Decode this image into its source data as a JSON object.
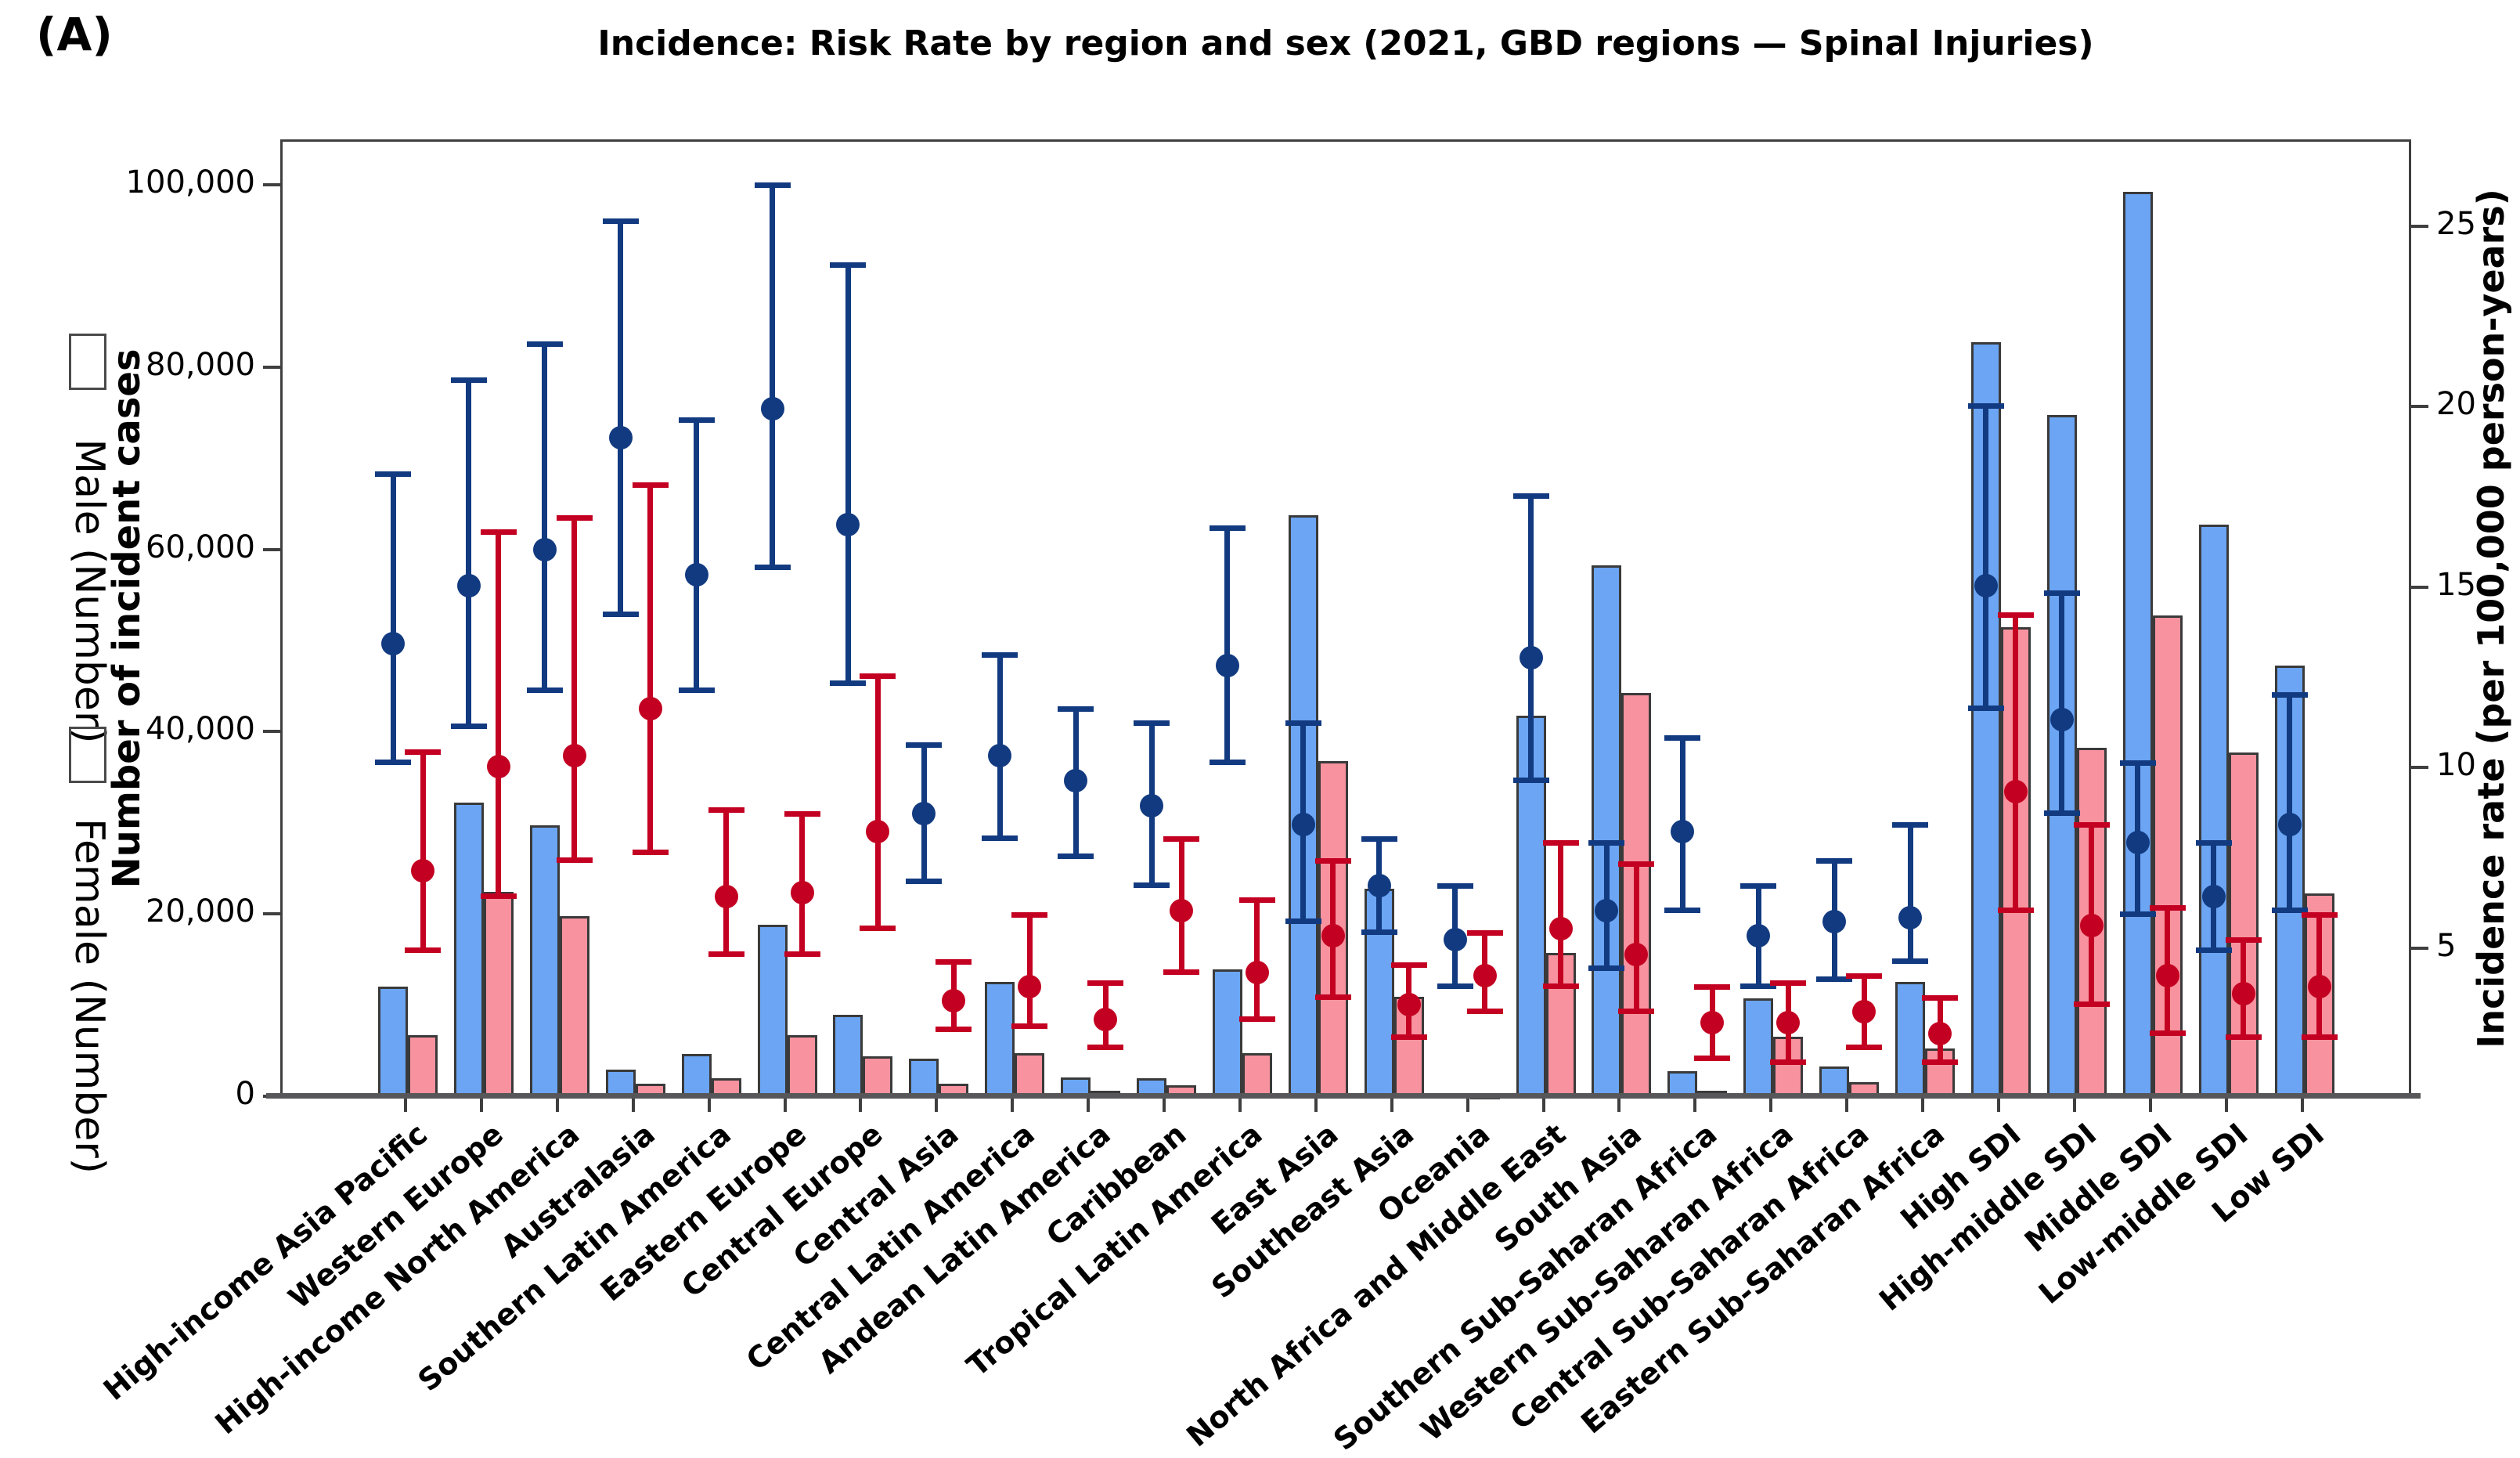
{
  "panel_label": "(A)",
  "title": "Incidence: Risk Rate by region and sex (2021, GBD regions — Spinal Injuries)",
  "legend": {
    "male": {
      "label": "Male (Number)",
      "color": "#6BA5F3"
    },
    "female": {
      "label": "Female (Number)",
      "color": "#F8929F"
    }
  },
  "colors": {
    "male_bar": "#6BA5F3",
    "female_bar": "#F8929F",
    "male_point": "#123A80",
    "female_point": "#C30021",
    "axis": "#3f3f3f",
    "bar_edge": "#3a3a3a"
  },
  "left_axis": {
    "label": "Number of incident cases",
    "tick_values": [
      0,
      20000,
      40000,
      60000,
      80000,
      100000
    ],
    "tick_labels": [
      "0",
      "20,000",
      "40,000",
      "60,000",
      "80,000",
      "100,000"
    ],
    "max": 105000
  },
  "right_axis": {
    "label": "Incidence rate (per 100,000 person-years)",
    "tick_values": [
      5,
      10,
      15,
      20,
      25
    ],
    "tick_labels": [
      "5",
      "10",
      "15",
      "20",
      "25"
    ],
    "min": 0.9,
    "max": 27.4
  },
  "chart_data": {
    "type": "bar",
    "subtype": "grouped bars (left axis) with point estimates and 95% CI whiskers (right axis)",
    "title": "Incidence: Risk Rate by region and sex (2021, GBD regions — Spinal Injuries)",
    "xlabel": "",
    "ylabel": "Number of incident cases",
    "ylabel_right": "Incidence rate (per 100,000 person-years)",
    "ylim_left": [
      0,
      105000
    ],
    "ylim_right": [
      0.9,
      27.4
    ],
    "grid": false,
    "legend_position": "left of plot, vertical",
    "categories": [
      "High-income Asia Pacific",
      "Western Europe",
      "High-income North America",
      "Australasia",
      "Southern Latin America",
      "Eastern Europe",
      "Central Europe",
      "Central Asia",
      "Central Latin America",
      "Andean Latin America",
      "Caribbean",
      "Tropical Latin America",
      "East Asia",
      "Southeast Asia",
      "Oceania",
      "North Africa and Middle East",
      "South Asia",
      "Southern Sub-Saharan Africa",
      "Western Sub-Saharan Africa",
      "Central Sub-Saharan Africa",
      "Eastern Sub-Saharan Africa",
      "High SDI",
      "High-middle SDI",
      "Middle SDI",
      "Low-middle SDI",
      "Low SDI"
    ],
    "series": [
      {
        "name": "Male (Number)",
        "kind": "bar",
        "axis": "left",
        "color": "#6BA5F3",
        "values": [
          12300,
          32500,
          30000,
          3200,
          4900,
          19100,
          9200,
          4400,
          12800,
          2300,
          2200,
          14200,
          64000,
          23000,
          600,
          42000,
          58500,
          3000,
          11000,
          3500,
          12800,
          83000,
          75000,
          99500,
          63000,
          47500
        ]
      },
      {
        "name": "Female (Number)",
        "kind": "bar",
        "axis": "left",
        "color": "#F8929F",
        "values": [
          7000,
          22700,
          20000,
          1600,
          2200,
          7000,
          4600,
          1600,
          5000,
          900,
          1500,
          5000,
          37000,
          11200,
          400,
          16000,
          44500,
          900,
          6800,
          1800,
          5500,
          51700,
          38500,
          53000,
          38000,
          22500
        ]
      },
      {
        "name": "Male incidence rate",
        "kind": "point_ci",
        "axis": "right",
        "color": "#123A80",
        "values": [
          13.5,
          15.1,
          16.1,
          19.2,
          15.4,
          20.0,
          16.8,
          8.8,
          10.4,
          9.7,
          9.0,
          12.9,
          8.5,
          6.8,
          5.3,
          13.1,
          6.1,
          8.3,
          5.4,
          5.8,
          5.9,
          15.1,
          11.4,
          8.0,
          6.5,
          8.5
        ],
        "ci_low": [
          10.2,
          11.2,
          12.2,
          14.3,
          12.2,
          15.6,
          12.4,
          6.9,
          8.1,
          7.6,
          6.8,
          10.2,
          5.8,
          5.5,
          4.0,
          9.7,
          4.5,
          6.1,
          4.0,
          4.2,
          4.7,
          11.7,
          8.8,
          6.0,
          5.0,
          6.1
        ],
        "ci_high": [
          18.2,
          20.8,
          21.8,
          25.2,
          19.7,
          26.2,
          24.0,
          10.7,
          13.2,
          11.7,
          11.3,
          16.7,
          11.3,
          8.1,
          6.8,
          17.6,
          8.0,
          10.9,
          6.8,
          7.5,
          8.5,
          20.1,
          14.9,
          10.2,
          8.0,
          12.1
        ]
      },
      {
        "name": "Female incidence rate",
        "kind": "point_ci",
        "axis": "right",
        "color": "#C30021",
        "values": [
          7.2,
          10.1,
          10.4,
          11.7,
          6.5,
          6.6,
          8.3,
          3.6,
          4.0,
          3.1,
          6.1,
          4.4,
          5.4,
          3.5,
          4.3,
          5.6,
          4.9,
          3.0,
          3.0,
          3.3,
          2.7,
          9.4,
          5.7,
          4.3,
          3.8,
          4.0
        ],
        "ci_low": [
          5.0,
          6.5,
          7.5,
          7.7,
          4.9,
          4.9,
          5.6,
          2.8,
          2.9,
          2.3,
          4.4,
          3.1,
          3.7,
          2.6,
          3.3,
          4.0,
          3.3,
          2.0,
          1.9,
          2.3,
          1.9,
          6.1,
          3.5,
          2.7,
          2.6,
          2.6
        ],
        "ci_high": [
          10.5,
          16.6,
          17.0,
          17.9,
          8.9,
          8.8,
          12.6,
          4.7,
          6.0,
          4.1,
          8.1,
          6.4,
          7.5,
          4.6,
          5.5,
          8.0,
          7.4,
          4.0,
          4.1,
          4.3,
          3.7,
          14.3,
          8.5,
          6.2,
          5.3,
          6.0
        ]
      }
    ]
  }
}
